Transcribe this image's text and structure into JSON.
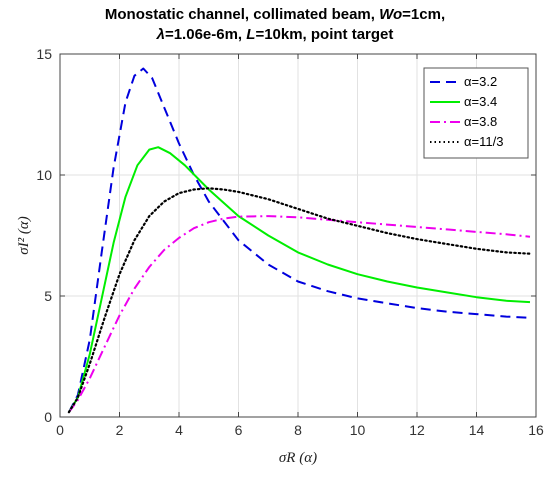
{
  "chart_data": {
    "type": "line",
    "title_line1": "Monostatic channel, collimated beam, Wo=1cm,",
    "title_line2": "λ=1.06e-6m, L=10km, point target",
    "xlabel": "σR (α)",
    "ylabel": "σI² (α)",
    "xlim": [
      0,
      16
    ],
    "ylim": [
      0,
      15
    ],
    "xticks": [
      "0",
      "2",
      "4",
      "6",
      "8",
      "10",
      "12",
      "14",
      "16"
    ],
    "yticks": [
      "0",
      "5",
      "10",
      "15"
    ],
    "grid": true,
    "legend_position": "top-right",
    "series": [
      {
        "name": "α=3.2",
        "color": "#0000dd",
        "style": "dashed",
        "x": [
          0.3,
          0.6,
          1.0,
          1.4,
          1.8,
          2.2,
          2.5,
          2.8,
          3.1,
          3.5,
          4.0,
          4.5,
          5.0,
          6.0,
          7.0,
          8.0,
          9.0,
          10.0,
          11.0,
          12.0,
          13.0,
          14.0,
          15.0,
          15.8
        ],
        "y": [
          0.2,
          0.9,
          3.2,
          6.8,
          10.3,
          13.0,
          14.1,
          14.4,
          14.0,
          12.8,
          11.3,
          10.0,
          8.9,
          7.3,
          6.3,
          5.6,
          5.2,
          4.9,
          4.7,
          4.5,
          4.35,
          4.25,
          4.15,
          4.1
        ]
      },
      {
        "name": "α=3.4",
        "color": "#00ee00",
        "style": "solid",
        "x": [
          0.3,
          0.6,
          1.0,
          1.4,
          1.8,
          2.2,
          2.6,
          3.0,
          3.3,
          3.7,
          4.2,
          5.0,
          6.0,
          7.0,
          8.0,
          9.0,
          10.0,
          11.0,
          12.0,
          13.0,
          14.0,
          15.0,
          15.8
        ],
        "y": [
          0.2,
          0.8,
          2.6,
          4.9,
          7.2,
          9.1,
          10.4,
          11.05,
          11.15,
          10.9,
          10.4,
          9.4,
          8.3,
          7.5,
          6.8,
          6.3,
          5.9,
          5.6,
          5.35,
          5.15,
          4.95,
          4.8,
          4.75
        ]
      },
      {
        "name": "α=3.8",
        "color": "#ee00ee",
        "style": "dashdot",
        "x": [
          0.3,
          0.6,
          1.0,
          1.5,
          2.0,
          2.5,
          3.0,
          3.5,
          4.0,
          4.5,
          5.0,
          5.5,
          6.0,
          7.0,
          8.0,
          9.0,
          10.0,
          11.0,
          12.0,
          13.0,
          14.0,
          15.0,
          15.8
        ],
        "y": [
          0.2,
          0.7,
          1.6,
          2.9,
          4.2,
          5.3,
          6.2,
          6.9,
          7.4,
          7.8,
          8.05,
          8.2,
          8.28,
          8.3,
          8.25,
          8.15,
          8.05,
          7.95,
          7.85,
          7.75,
          7.65,
          7.55,
          7.45
        ]
      },
      {
        "name": "α=11/3",
        "color": "#000000",
        "style": "dotted",
        "x": [
          0.3,
          0.6,
          1.0,
          1.5,
          2.0,
          2.5,
          3.0,
          3.5,
          4.0,
          4.5,
          5.0,
          5.5,
          6.0,
          7.0,
          8.0,
          9.0,
          10.0,
          11.0,
          12.0,
          13.0,
          14.0,
          15.0,
          15.8
        ],
        "y": [
          0.2,
          0.8,
          2.2,
          4.1,
          5.9,
          7.3,
          8.3,
          8.9,
          9.25,
          9.4,
          9.45,
          9.4,
          9.3,
          9.0,
          8.6,
          8.2,
          7.9,
          7.6,
          7.35,
          7.15,
          6.95,
          6.8,
          6.75
        ]
      }
    ]
  }
}
